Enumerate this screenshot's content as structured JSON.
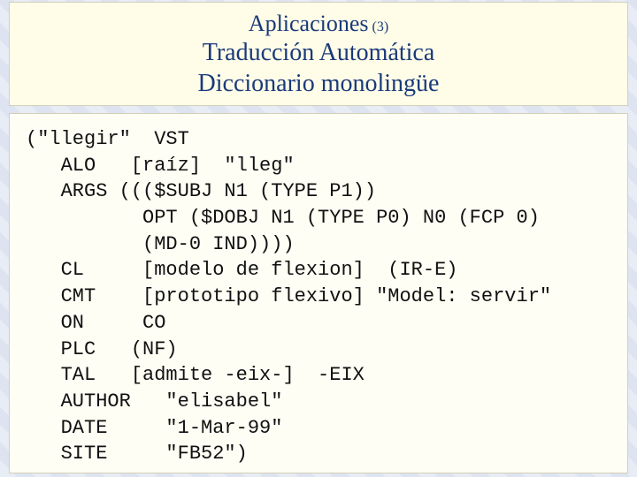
{
  "header": {
    "title_main": "Aplicaciones",
    "title_sub": "(3)",
    "line2": "Traducción  Automática",
    "line3": "Diccionario monolingüe"
  },
  "code": {
    "l01": "(\"llegir\"  VST",
    "l02": "   ALO   [raíz]  \"lleg\"",
    "l03": "   ARGS ((($SUBJ N1 (TYPE P1))",
    "l04": "          OPT ($DOBJ N1 (TYPE P0) N0 (FCP 0)",
    "l05": "          (MD-0 IND))))",
    "l06": "   CL     [modelo de flexion]  (IR-E)",
    "l07": "   CMT    [prototipo flexivo] \"Model: servir\"",
    "l08": "   ON     CO",
    "l09": "   PLC   (NF)",
    "l10": "   TAL   [admite -eix-]  -EIX",
    "l11": "   AUTHOR   \"elisabel\"",
    "l12": "   DATE     \"1-Mar-99\"",
    "l13": "   SITE     \"FB52\")"
  },
  "colors": {
    "header_bg": "#fffde8",
    "code_bg": "#fffef5",
    "title_color": "#1a3a7a",
    "page_stripe_a": "#e8ecf5",
    "page_stripe_b": "#dde3f0"
  }
}
